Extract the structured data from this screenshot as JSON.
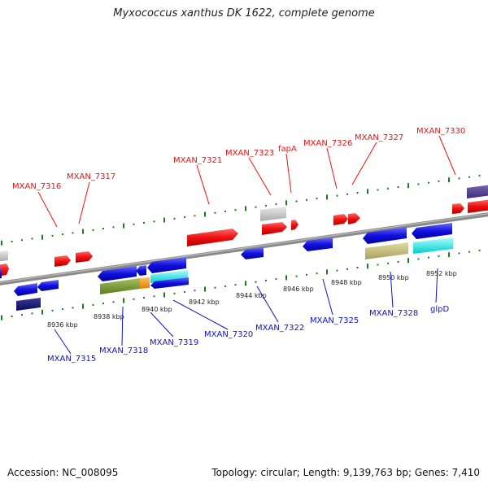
{
  "title": "Myxococcus xanthus DK 1622, complete genome",
  "footer": {
    "accession": "Accession: NC_008095",
    "summary": "Topology: circular; Length: 9,139,763 bp; Genes: 7,410"
  },
  "colors": {
    "forward_label": "#ee1111",
    "reverse_label": "#1111cc",
    "scale_dots": "#1f7a1f",
    "backbone": "#888888"
  },
  "scale_ticks": [
    "8936 kbp",
    "8938 kbp",
    "8940 kbp",
    "8942 kbp",
    "8944 kbp",
    "8946 kbp",
    "8948 kbp",
    "8950 kbp",
    "8952 kbp"
  ],
  "forward_labels": [
    "MXAN_7316",
    "MXAN_7317",
    "MXAN_7321",
    "MXAN_7323",
    "fapA",
    "MXAN_7326",
    "MXAN_7327",
    "MXAN_7330"
  ],
  "reverse_labels": [
    "MXAN_7315",
    "MXAN_7318",
    "MXAN_7319",
    "MXAN_7320",
    "MXAN_7322",
    "MXAN_7325",
    "MXAN_7328",
    "glpD"
  ]
}
